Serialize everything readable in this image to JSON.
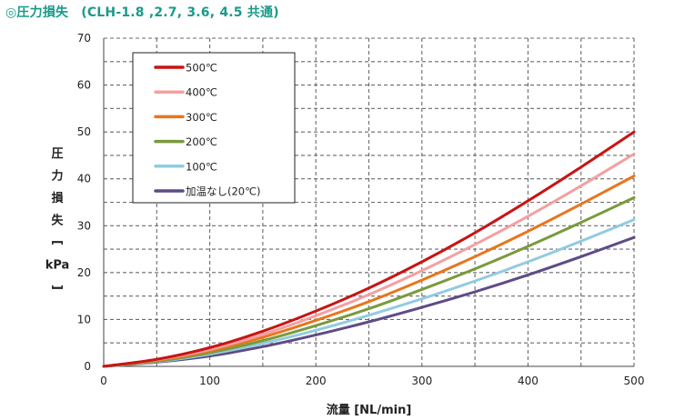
{
  "title": {
    "main": "◎圧力損失",
    "models": "(CLH-1.8 ,2.7, 3.6, 4.5 共通)"
  },
  "chart_data": {
    "type": "line",
    "xlabel": "流量 [NL/min]",
    "ylabel_chars": [
      "圧",
      "力",
      "損",
      "失",
      "[",
      "kPa",
      "]"
    ],
    "xlim": [
      0,
      500
    ],
    "ylim": [
      0,
      70
    ],
    "xticks": [
      0,
      100,
      200,
      300,
      400,
      500
    ],
    "yticks": [
      0,
      10,
      20,
      30,
      40,
      50,
      60,
      70
    ],
    "grid": true,
    "legend_position": "top-left",
    "x": [
      0,
      50,
      100,
      150,
      200,
      250,
      300,
      350,
      400,
      450,
      500
    ],
    "series": [
      {
        "name": "500℃",
        "color": "#c81414",
        "values": [
          0,
          1.5,
          4.0,
          7.5,
          11.8,
          16.7,
          22.3,
          28.5,
          35.3,
          42.5,
          50.0
        ]
      },
      {
        "name": "400℃",
        "color": "#f4a0a0",
        "values": [
          0,
          1.4,
          3.6,
          6.8,
          10.8,
          15.3,
          20.4,
          26.0,
          32.0,
          38.5,
          45.3
        ]
      },
      {
        "name": "300℃",
        "color": "#e8761e",
        "values": [
          0,
          1.3,
          3.3,
          6.2,
          9.8,
          13.8,
          18.4,
          23.4,
          28.8,
          34.6,
          40.6
        ]
      },
      {
        "name": "200℃",
        "color": "#7a9a3c",
        "values": [
          0,
          1.1,
          2.9,
          5.5,
          8.7,
          12.3,
          16.4,
          20.8,
          25.6,
          30.7,
          36.0
        ]
      },
      {
        "name": "100℃",
        "color": "#92cbe0",
        "values": [
          0,
          1.0,
          2.6,
          4.9,
          7.7,
          10.9,
          14.4,
          18.2,
          22.3,
          26.7,
          31.3
        ]
      },
      {
        "name": "加温なし(20℃)",
        "color": "#5e4b86",
        "values": [
          0,
          0.9,
          2.2,
          4.2,
          6.7,
          9.5,
          12.6,
          15.9,
          19.5,
          23.4,
          27.5
        ]
      }
    ]
  }
}
